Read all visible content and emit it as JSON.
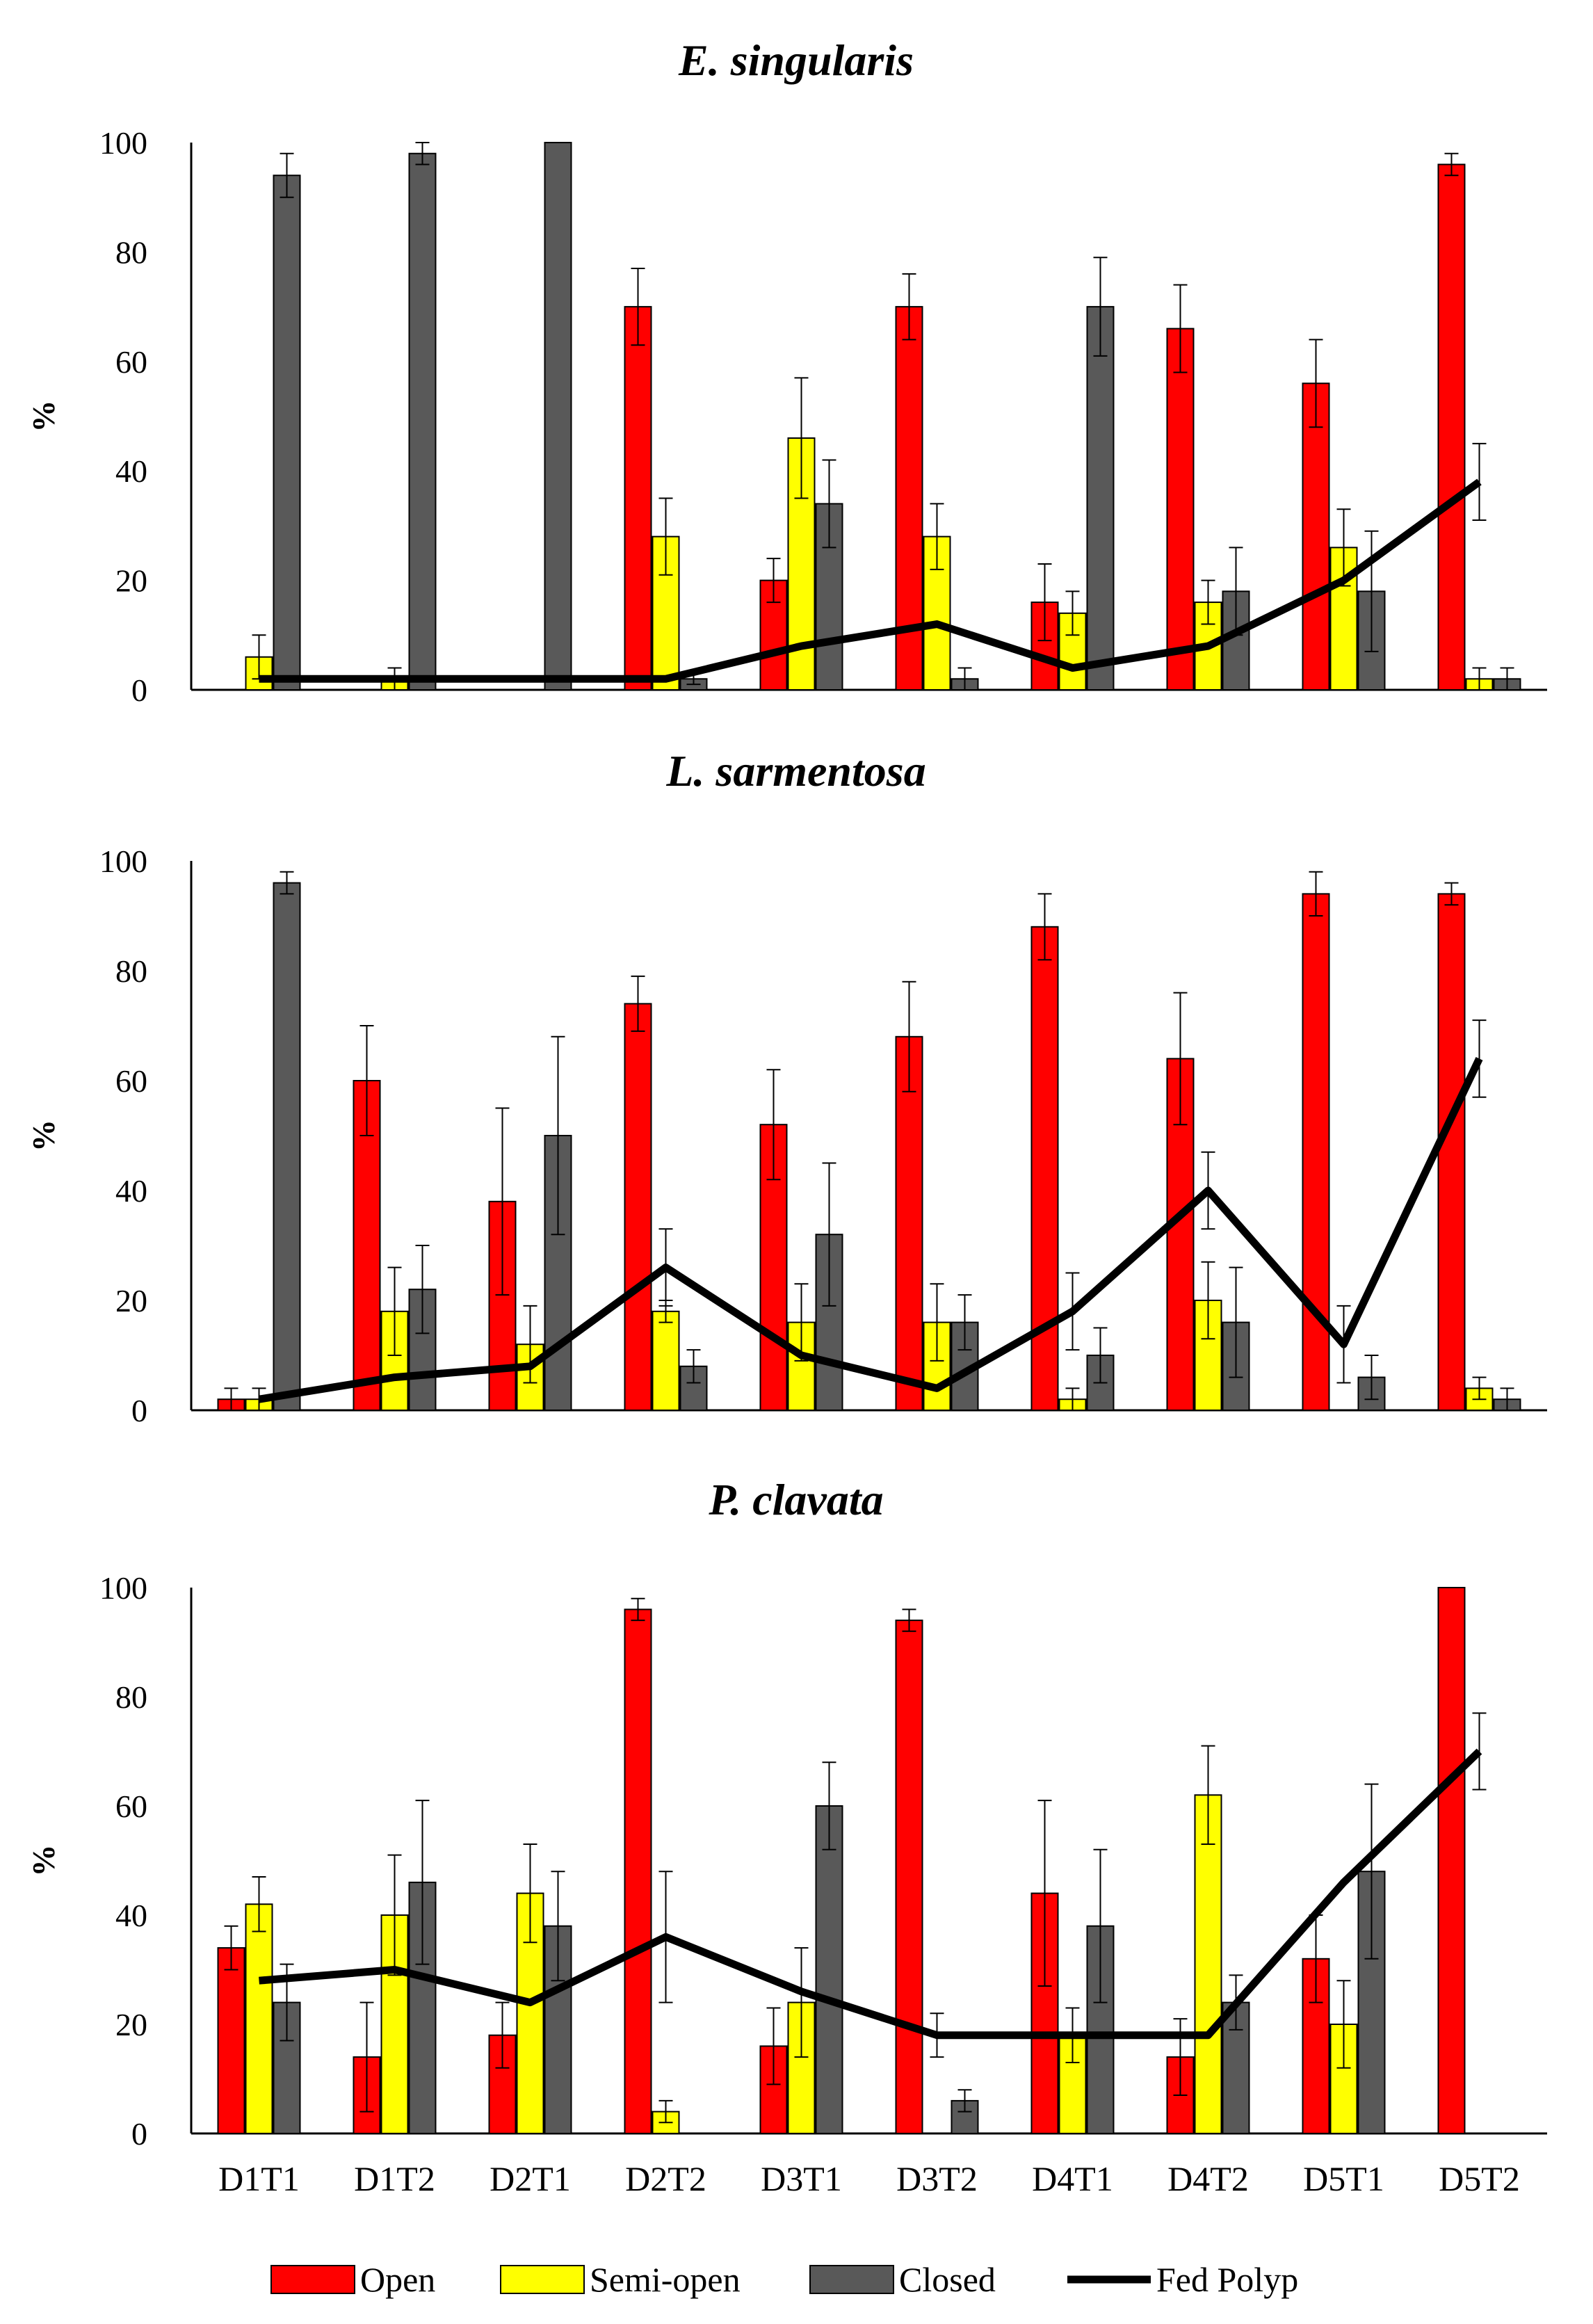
{
  "legend": [
    {
      "key": "open",
      "label": "Open",
      "color": "#ff0000"
    },
    {
      "key": "semi",
      "label": "Semi-open",
      "color": "#ffff00"
    },
    {
      "key": "closed",
      "label": "Closed",
      "color": "#595959"
    },
    {
      "key": "fed",
      "label": "Fed Polyp",
      "color": "#000000"
    }
  ],
  "chart_data": [
    {
      "type": "bar",
      "title": "E. singularis",
      "ylabel": "%",
      "xlabel": "",
      "ylim": [
        0,
        100
      ],
      "yticks": [
        0,
        20,
        40,
        60,
        80,
        100
      ],
      "categories": [
        "D1T1",
        "D1T2",
        "D2T1",
        "D2T2",
        "D3T1",
        "D3T2",
        "D4T1",
        "D4T2",
        "D5T1",
        "D5T2"
      ],
      "show_category_labels": false,
      "series": [
        {
          "name": "Open",
          "values": [
            0,
            0,
            0,
            70,
            20,
            70,
            16,
            66,
            56,
            96
          ],
          "errors": [
            0,
            0,
            0,
            7,
            4,
            6,
            7,
            8,
            8,
            2
          ]
        },
        {
          "name": "Semi-open",
          "values": [
            6,
            2,
            0,
            28,
            46,
            28,
            14,
            16,
            26,
            2
          ],
          "errors": [
            4,
            2,
            0,
            7,
            11,
            6,
            4,
            4,
            7,
            2
          ]
        },
        {
          "name": "Closed",
          "values": [
            94,
            98,
            100,
            2,
            34,
            2,
            70,
            18,
            18,
            2
          ],
          "errors": [
            4,
            2,
            0,
            1,
            8,
            2,
            9,
            8,
            11,
            2
          ]
        }
      ],
      "line": {
        "name": "Fed Polyp",
        "values": [
          2,
          2,
          2,
          2,
          8,
          12,
          4,
          8,
          20,
          38
        ],
        "errors": [
          0,
          0,
          0,
          0,
          0,
          0,
          0,
          0,
          0,
          7
        ]
      }
    },
    {
      "type": "bar",
      "title": "L. sarmentosa",
      "ylabel": "%",
      "xlabel": "",
      "ylim": [
        0,
        100
      ],
      "yticks": [
        0,
        20,
        40,
        60,
        80,
        100
      ],
      "categories": [
        "D1T1",
        "D1T2",
        "D2T1",
        "D2T2",
        "D3T1",
        "D3T2",
        "D4T1",
        "D4T2",
        "D5T1",
        "D5T2"
      ],
      "show_category_labels": false,
      "series": [
        {
          "name": "Open",
          "values": [
            2,
            60,
            38,
            74,
            52,
            68,
            88,
            64,
            94,
            94
          ],
          "errors": [
            2,
            10,
            17,
            5,
            10,
            10,
            6,
            12,
            4,
            2
          ]
        },
        {
          "name": "Semi-open",
          "values": [
            2,
            18,
            12,
            18,
            16,
            16,
            2,
            20,
            0,
            4
          ],
          "errors": [
            2,
            8,
            7,
            2,
            7,
            7,
            2,
            7,
            0,
            2
          ]
        },
        {
          "name": "Closed",
          "values": [
            96,
            22,
            50,
            8,
            32,
            16,
            10,
            16,
            6,
            2
          ],
          "errors": [
            2,
            8,
            18,
            3,
            13,
            5,
            5,
            10,
            4,
            2
          ]
        }
      ],
      "line": {
        "name": "Fed Polyp",
        "values": [
          2,
          6,
          8,
          26,
          10,
          4,
          18,
          40,
          12,
          64
        ],
        "errors": [
          0,
          0,
          0,
          7,
          0,
          0,
          7,
          7,
          7,
          7
        ]
      }
    },
    {
      "type": "bar",
      "title": "P. clavata",
      "ylabel": "%",
      "xlabel": "",
      "ylim": [
        0,
        100
      ],
      "yticks": [
        0,
        20,
        40,
        60,
        80,
        100
      ],
      "categories": [
        "D1T1",
        "D1T2",
        "D2T1",
        "D2T2",
        "D3T1",
        "D3T2",
        "D4T1",
        "D4T2",
        "D5T1",
        "D5T2"
      ],
      "show_category_labels": true,
      "series": [
        {
          "name": "Open",
          "values": [
            34,
            14,
            18,
            96,
            16,
            94,
            44,
            14,
            32,
            100
          ],
          "errors": [
            4,
            10,
            6,
            2,
            7,
            2,
            17,
            7,
            8,
            0
          ]
        },
        {
          "name": "Semi-open",
          "values": [
            42,
            40,
            44,
            4,
            24,
            0,
            18,
            62,
            20,
            0
          ],
          "errors": [
            5,
            11,
            9,
            2,
            10,
            0,
            5,
            9,
            8,
            0
          ]
        },
        {
          "name": "Closed",
          "values": [
            24,
            46,
            38,
            0,
            60,
            6,
            38,
            24,
            48,
            0
          ],
          "errors": [
            7,
            15,
            10,
            0,
            8,
            2,
            14,
            5,
            16,
            0
          ]
        }
      ],
      "line": {
        "name": "Fed Polyp",
        "values": [
          28,
          30,
          24,
          36,
          26,
          18,
          18,
          18,
          46,
          70
        ],
        "errors": [
          0,
          0,
          0,
          12,
          0,
          4,
          0,
          0,
          0,
          7
        ]
      }
    }
  ]
}
